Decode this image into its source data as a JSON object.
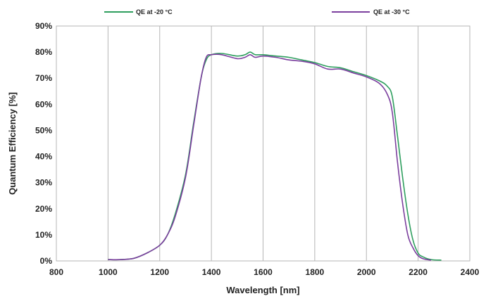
{
  "chart_data": {
    "type": "line",
    "title": "",
    "xlabel": "Wavelength [nm]",
    "ylabel": "Quantum Efficiency [%]",
    "xlim": [
      800,
      2400
    ],
    "ylim": [
      0,
      90
    ],
    "x_ticks": [
      800,
      1000,
      1200,
      1400,
      1600,
      1800,
      2000,
      2200,
      2400
    ],
    "y_ticks": [
      0,
      10,
      20,
      30,
      40,
      50,
      60,
      70,
      80,
      90
    ],
    "y_tick_suffix": "%",
    "grid": "vertical",
    "legend_position": "top",
    "series": [
      {
        "name": "QE at -20 °C",
        "color": "#2e9e5e",
        "points": [
          [
            1000,
            0.5
          ],
          [
            1050,
            0.5
          ],
          [
            1100,
            1
          ],
          [
            1150,
            3
          ],
          [
            1200,
            6
          ],
          [
            1230,
            10
          ],
          [
            1260,
            18
          ],
          [
            1300,
            33
          ],
          [
            1330,
            52
          ],
          [
            1360,
            70
          ],
          [
            1380,
            77
          ],
          [
            1400,
            79
          ],
          [
            1440,
            79.5
          ],
          [
            1500,
            78.5
          ],
          [
            1530,
            79
          ],
          [
            1550,
            80
          ],
          [
            1570,
            79
          ],
          [
            1600,
            79
          ],
          [
            1650,
            78.5
          ],
          [
            1700,
            78
          ],
          [
            1750,
            77
          ],
          [
            1800,
            76
          ],
          [
            1850,
            74.5
          ],
          [
            1900,
            74
          ],
          [
            1950,
            72.5
          ],
          [
            2000,
            71
          ],
          [
            2050,
            69
          ],
          [
            2080,
            67
          ],
          [
            2100,
            63
          ],
          [
            2120,
            48
          ],
          [
            2140,
            32
          ],
          [
            2160,
            18
          ],
          [
            2180,
            8
          ],
          [
            2200,
            3
          ],
          [
            2220,
            1.5
          ],
          [
            2250,
            0.5
          ],
          [
            2290,
            0.3
          ]
        ]
      },
      {
        "name": "QE at -30 °C",
        "color": "#7b3f9e",
        "points": [
          [
            1000,
            0.5
          ],
          [
            1050,
            0.5
          ],
          [
            1100,
            1
          ],
          [
            1150,
            3
          ],
          [
            1200,
            6
          ],
          [
            1230,
            10
          ],
          [
            1260,
            17
          ],
          [
            1300,
            32
          ],
          [
            1330,
            51
          ],
          [
            1360,
            70
          ],
          [
            1380,
            78
          ],
          [
            1400,
            79
          ],
          [
            1440,
            79
          ],
          [
            1500,
            77.5
          ],
          [
            1530,
            78
          ],
          [
            1550,
            79
          ],
          [
            1570,
            78
          ],
          [
            1600,
            78.5
          ],
          [
            1650,
            78
          ],
          [
            1700,
            77
          ],
          [
            1750,
            76.5
          ],
          [
            1800,
            75.5
          ],
          [
            1850,
            73.5
          ],
          [
            1900,
            73.5
          ],
          [
            1950,
            72
          ],
          [
            2000,
            70.5
          ],
          [
            2050,
            68
          ],
          [
            2080,
            64
          ],
          [
            2100,
            57
          ],
          [
            2120,
            38
          ],
          [
            2140,
            22
          ],
          [
            2160,
            10
          ],
          [
            2180,
            5
          ],
          [
            2200,
            2
          ],
          [
            2220,
            0.8
          ],
          [
            2250,
            0.3
          ]
        ]
      }
    ]
  }
}
